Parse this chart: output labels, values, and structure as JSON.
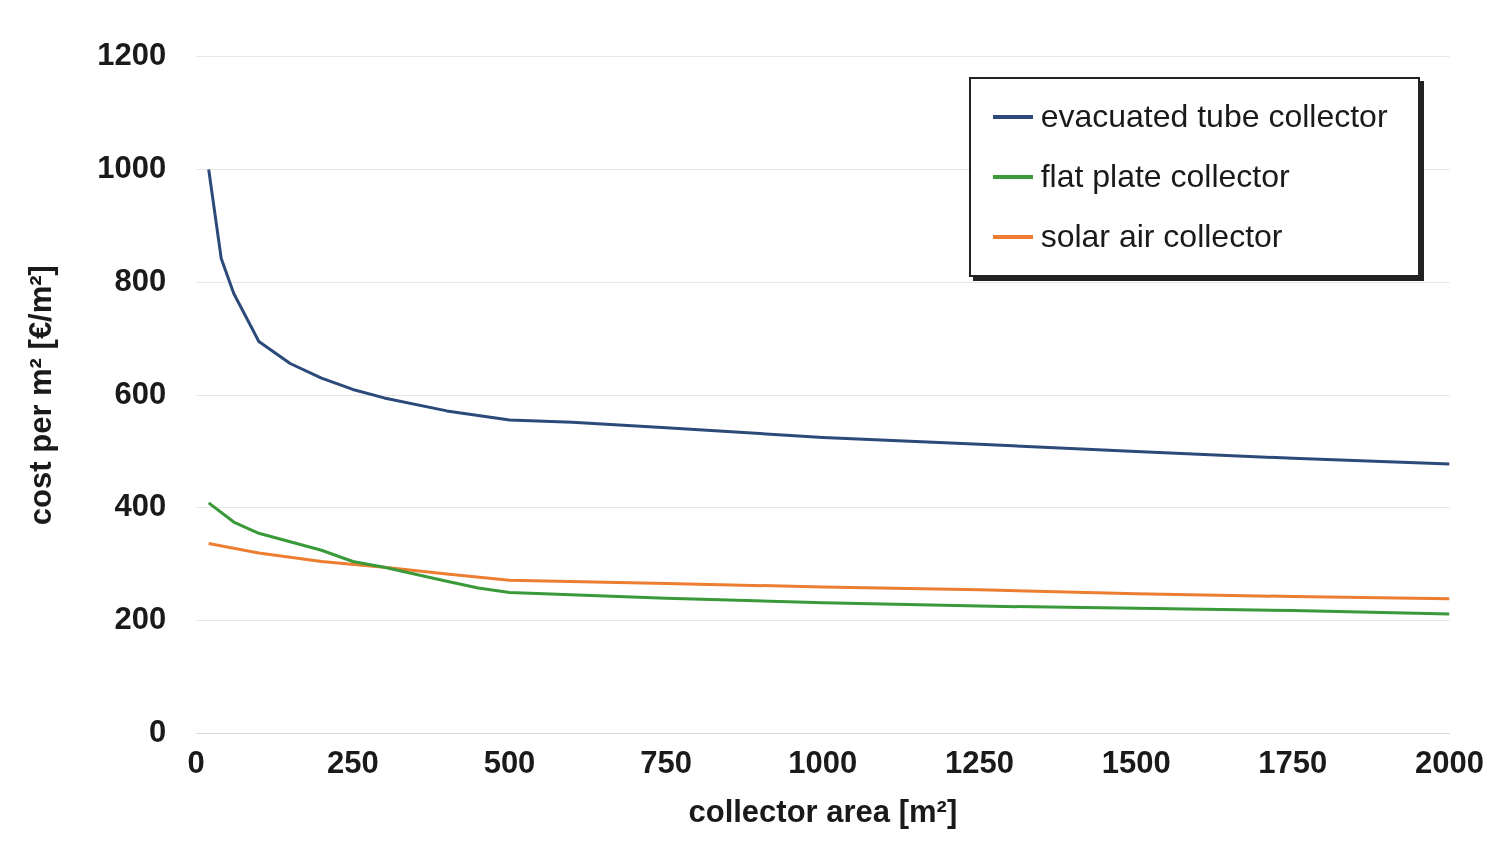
{
  "chart_data": {
    "type": "line",
    "xlabel": "collector area [m²]",
    "ylabel": "cost per m² [€/m²]",
    "xlim": [
      0,
      2000
    ],
    "xticks": [
      0,
      250,
      500,
      750,
      1000,
      1250,
      1500,
      1750,
      2000
    ],
    "ylim": [
      0,
      1200
    ],
    "yticks": [
      0,
      200,
      400,
      600,
      800,
      1000,
      1200
    ],
    "grid": "y",
    "legend": "top right",
    "marker": "none",
    "line_style": "solid",
    "series": [
      {
        "name": "evacuated tube collector",
        "color": "#2b4a7a",
        "x": [
          20,
          40,
          60,
          100,
          150,
          200,
          250,
          300,
          400,
          500,
          600,
          750,
          1000,
          1250,
          1500,
          1750,
          2000
        ],
        "values": [
          1000,
          842,
          780,
          695,
          656,
          630,
          610,
          595,
          572,
          556,
          552,
          542,
          525,
          513,
          500,
          488,
          478
        ]
      },
      {
        "name": "flat plate collector",
        "color": "#3a9a3a",
        "x": [
          20,
          60,
          100,
          150,
          200,
          250,
          300,
          400,
          450,
          500,
          750,
          1000,
          1250,
          1500,
          1750,
          2000
        ],
        "values": [
          409,
          375,
          355,
          340,
          325,
          305,
          295,
          270,
          258,
          250,
          240,
          232,
          226,
          222,
          218,
          212
        ]
      },
      {
        "name": "solar air collector",
        "color": "#ed7d31",
        "x": [
          20,
          100,
          200,
          300,
          400,
          500,
          750,
          1000,
          1250,
          1500,
          1750,
          2000
        ],
        "values": [
          337,
          320,
          305,
          295,
          283,
          272,
          266,
          260,
          255,
          248,
          243,
          239
        ]
      }
    ]
  }
}
